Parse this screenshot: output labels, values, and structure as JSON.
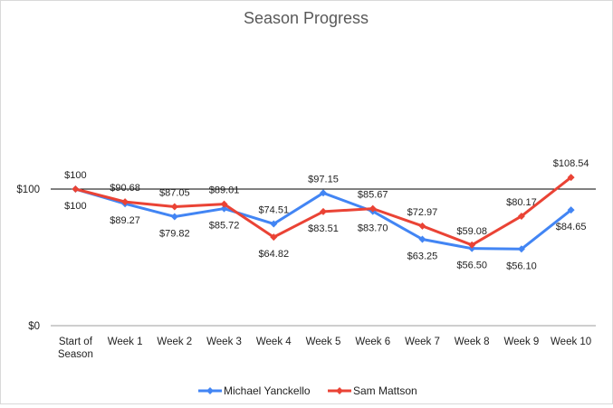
{
  "chart_data": {
    "type": "line",
    "title": "Season Progress",
    "categories": [
      "Start of Season",
      "Week 1",
      "Week 2",
      "Week 3",
      "Week 4",
      "Week 5",
      "Week 6",
      "Week 7",
      "Week 8",
      "Week 9",
      "Week 10"
    ],
    "category_labels": [
      [
        "Start of",
        "Season"
      ],
      [
        "Week 1"
      ],
      [
        "Week 2"
      ],
      [
        "Week 3"
      ],
      [
        "Week 4"
      ],
      [
        "Week 5"
      ],
      [
        "Week 6"
      ],
      [
        "Week 7"
      ],
      [
        "Week 8"
      ],
      [
        "Week 9"
      ],
      [
        "Week 10"
      ]
    ],
    "y_ticks": [
      {
        "value": 0,
        "label": "$0"
      },
      {
        "value": 100,
        "label": "$100"
      }
    ],
    "ylim": [
      0,
      100
    ],
    "grid": true,
    "legend_position": "bottom",
    "series": [
      {
        "name": "Michael Yanckello",
        "color": "#4285f4",
        "values": [
          100,
          89.27,
          79.82,
          85.72,
          74.51,
          97.15,
          83.7,
          63.25,
          56.5,
          56.1,
          84.65
        ],
        "labels": [
          "$100",
          "$89.27",
          "$79.82",
          "$85.72",
          "$74.51",
          "$97.15",
          "$83.70",
          "$63.25",
          "$56.50",
          "$56.10",
          "$84.65"
        ]
      },
      {
        "name": "Sam Mattson",
        "color": "#ea4335",
        "values": [
          100,
          90.68,
          87.05,
          89.01,
          64.82,
          83.51,
          85.67,
          72.97,
          59.08,
          80.17,
          108.54
        ],
        "labels": [
          "$100",
          "$90.68",
          "$87.05",
          "$89.01",
          "$64.82",
          "$83.51",
          "$85.67",
          "$72.97",
          "$59.08",
          "$80.17",
          "$108.54"
        ]
      }
    ]
  }
}
